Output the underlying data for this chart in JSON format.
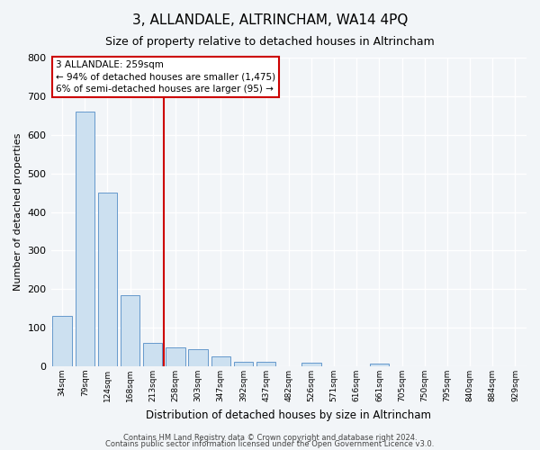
{
  "title": "3, ALLANDALE, ALTRINCHAM, WA14 4PQ",
  "subtitle": "Size of property relative to detached houses in Altrincham",
  "xlabel": "Distribution of detached houses by size in Altrincham",
  "ylabel": "Number of detached properties",
  "footnote1": "Contains HM Land Registry data © Crown copyright and database right 2024.",
  "footnote2": "Contains public sector information licensed under the Open Government Licence v3.0.",
  "bin_labels": [
    "34sqm",
    "79sqm",
    "124sqm",
    "168sqm",
    "213sqm",
    "258sqm",
    "303sqm",
    "347sqm",
    "392sqm",
    "437sqm",
    "482sqm",
    "526sqm",
    "571sqm",
    "616sqm",
    "661sqm",
    "705sqm",
    "750sqm",
    "795sqm",
    "840sqm",
    "884sqm",
    "929sqm"
  ],
  "bar_values": [
    130,
    660,
    450,
    185,
    60,
    50,
    45,
    25,
    12,
    12,
    0,
    10,
    0,
    0,
    7,
    0,
    0,
    0,
    0,
    0,
    0
  ],
  "bar_color": "#cce0f0",
  "bar_edge_color": "#6699cc",
  "vline_color": "#cc0000",
  "vline_x_index": 4.5,
  "annotation_line0": "3 ALLANDALE: 259sqm",
  "annotation_line1": "← 94% of detached houses are smaller (1,475)",
  "annotation_line2": "6% of semi-detached houses are larger (95) →",
  "annotation_box_color": "#cc0000",
  "ylim": [
    0,
    800
  ],
  "yticks": [
    0,
    100,
    200,
    300,
    400,
    500,
    600,
    700,
    800
  ],
  "bg_color": "#f2f5f8",
  "plot_bg_color": "#f2f5f8",
  "grid_color": "#ffffff",
  "title_fontsize": 11,
  "subtitle_fontsize": 9
}
